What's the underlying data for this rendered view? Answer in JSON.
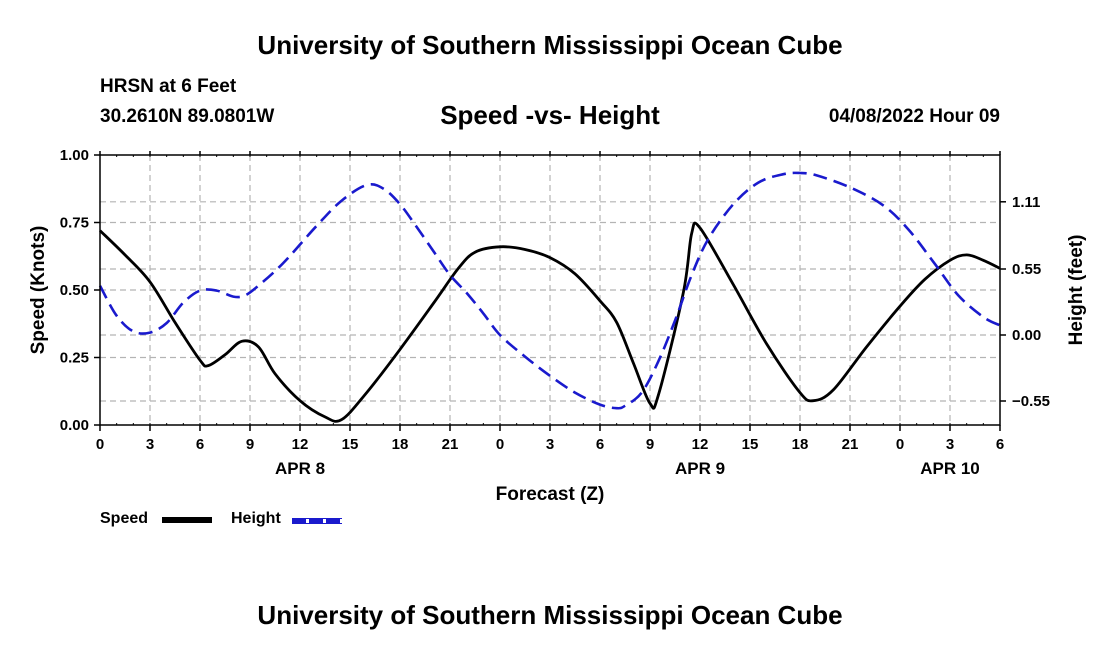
{
  "header": {
    "title": "University of Southern Mississippi Ocean Cube",
    "station": "HRSN at 6 Feet",
    "coords": "30.2610N  89.0801W",
    "subtitle": "Speed -vs- Height",
    "timestamp": "04/08/2022 Hour 09"
  },
  "footer": {
    "title": "University of Southern Mississippi Ocean Cube"
  },
  "legend": {
    "speed_label": "Speed",
    "height_label": "Height"
  },
  "colors": {
    "speed": "#000000",
    "height": "#1a1acd",
    "grid": "#b4b4b4"
  },
  "chart_data": {
    "type": "line",
    "title": "Speed -vs- Height",
    "xlabel": "Forecast (Z)",
    "ylabel": "Speed (Knots)",
    "ylabel_right": "Height (feet)",
    "x_unit": "hours from 00Z Apr 8",
    "xlim": [
      0,
      54
    ],
    "ylim": [
      0,
      1
    ],
    "ylim_right": [
      -0.75,
      1.5
    ],
    "x_ticks": [
      0,
      3,
      6,
      9,
      12,
      15,
      18,
      21,
      24,
      27,
      30,
      33,
      36,
      39,
      42,
      45,
      48,
      51,
      54
    ],
    "x_tick_labels": [
      "0",
      "3",
      "6",
      "9",
      "12",
      "15",
      "18",
      "21",
      "0",
      "3",
      "6",
      "9",
      "12",
      "15",
      "18",
      "21",
      "0",
      "3",
      "6"
    ],
    "date_labels": [
      {
        "x": 12,
        "label": "APR 8"
      },
      {
        "x": 36,
        "label": "APR 9"
      },
      {
        "x": 51,
        "label": "APR 10"
      }
    ],
    "y_ticks": [
      0,
      0.25,
      0.5,
      0.75,
      1.0
    ],
    "y_tick_labels": [
      "0.00",
      "0.25",
      "0.50",
      "0.75",
      "1.00"
    ],
    "y_right_ticks": [
      -0.55,
      0,
      0.55,
      1.11
    ],
    "y_right_tick_labels": [
      "−0.55",
      "0.00",
      "0.55",
      "1.11"
    ],
    "grid": true,
    "series": [
      {
        "name": "Speed",
        "axis": "left",
        "style": "solid",
        "x": [
          0,
          1.5,
          3,
          4.5,
          6,
          6.5,
          7.5,
          8.5,
          9.5,
          10.5,
          12,
          13.5,
          14.5,
          16,
          18,
          20,
          21.5,
          22.5,
          24,
          25.5,
          27,
          28.5,
          30,
          31,
          32,
          33,
          33.5,
          35,
          35.5,
          36,
          38,
          40,
          42,
          42.8,
          44,
          46,
          48,
          49.5,
          51,
          52,
          53,
          54
        ],
        "values": [
          0.72,
          0.63,
          0.53,
          0.38,
          0.24,
          0.22,
          0.26,
          0.31,
          0.29,
          0.19,
          0.09,
          0.03,
          0.02,
          0.12,
          0.28,
          0.45,
          0.58,
          0.64,
          0.66,
          0.65,
          0.62,
          0.56,
          0.46,
          0.38,
          0.23,
          0.08,
          0.11,
          0.49,
          0.71,
          0.73,
          0.52,
          0.3,
          0.12,
          0.09,
          0.13,
          0.29,
          0.44,
          0.54,
          0.61,
          0.63,
          0.61,
          0.58
        ]
      },
      {
        "name": "Height",
        "axis": "right",
        "style": "dashed",
        "x": [
          0,
          1,
          2,
          3,
          4,
          5,
          6,
          7,
          8,
          8.7,
          9.5,
          11,
          13,
          14.5,
          16,
          17,
          18,
          19,
          20,
          21,
          22,
          23,
          24,
          25.5,
          27,
          28.5,
          30,
          31,
          31.5,
          32.5,
          33.5,
          34.5,
          35.5,
          36.5,
          38,
          39.5,
          41,
          42,
          43,
          45,
          47,
          48.5,
          50,
          51.5,
          53,
          54
        ],
        "values": [
          0.41,
          0.16,
          0.03,
          0.02,
          0.1,
          0.27,
          0.37,
          0.37,
          0.32,
          0.33,
          0.41,
          0.6,
          0.91,
          1.12,
          1.25,
          1.22,
          1.09,
          0.9,
          0.7,
          0.5,
          0.35,
          0.18,
          0.0,
          -0.18,
          -0.34,
          -0.48,
          -0.58,
          -0.61,
          -0.59,
          -0.48,
          -0.22,
          0.12,
          0.5,
          0.8,
          1.09,
          1.27,
          1.34,
          1.35,
          1.33,
          1.23,
          1.08,
          0.88,
          0.61,
          0.33,
          0.15,
          0.08
        ]
      }
    ]
  }
}
